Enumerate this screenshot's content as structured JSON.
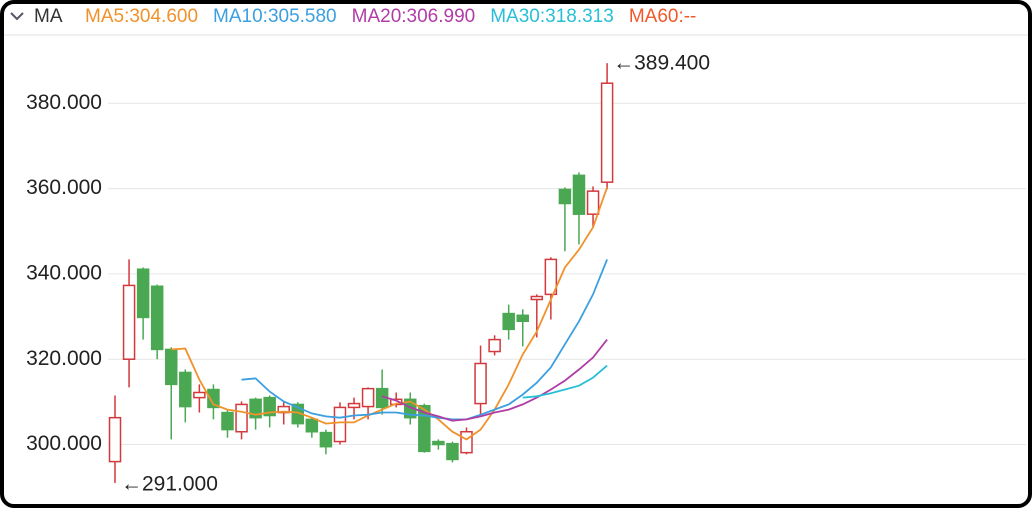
{
  "chart_data": {
    "type": "candlestick",
    "header": "MA",
    "categories": [
      null,
      null,
      null,
      null,
      null,
      null,
      null,
      null,
      null,
      null,
      null,
      null,
      null,
      null,
      null,
      null,
      null,
      null,
      null,
      null,
      null,
      null,
      null,
      null,
      null,
      null,
      null,
      null,
      null,
      null,
      null,
      null,
      null,
      null,
      null,
      null
    ],
    "open": [
      296.0,
      320.0,
      341.1,
      337.1,
      322.3,
      316.9,
      311.0,
      312.9,
      307.5,
      303.0,
      310.6,
      311.0,
      307.5,
      309.4,
      305.9,
      302.8,
      300.7,
      308.7,
      308.9,
      313.1,
      309.4,
      310.6,
      309.1,
      300.7,
      300.2,
      298.1,
      309.6,
      321.8,
      330.7,
      330.3,
      334.0,
      335.2,
      359.8,
      363.1,
      354.0,
      361.5
    ],
    "high": [
      311.5,
      343.4,
      341.5,
      337.5,
      322.8,
      317.6,
      314.1,
      314.1,
      308.2,
      310.1,
      311.0,
      311.5,
      309.9,
      309.9,
      306.3,
      303.5,
      309.9,
      311.0,
      313.4,
      317.6,
      312.2,
      312.2,
      309.6,
      301.2,
      300.7,
      304.0,
      323.2,
      325.6,
      332.8,
      331.7,
      335.2,
      343.9,
      360.3,
      363.8,
      360.5,
      389.4
    ],
    "low": [
      291.0,
      313.4,
      324.6,
      320.0,
      301.2,
      305.2,
      307.5,
      305.9,
      301.6,
      301.2,
      303.5,
      304.0,
      304.7,
      304.0,
      301.6,
      297.7,
      300.0,
      305.9,
      305.9,
      307.0,
      308.7,
      304.7,
      298.1,
      298.8,
      295.8,
      297.7,
      307.0,
      320.9,
      324.6,
      323.0,
      325.1,
      329.3,
      345.3,
      346.9,
      350.9,
      359.8
    ],
    "close": [
      306.3,
      337.3,
      329.8,
      322.3,
      314.1,
      308.9,
      312.2,
      308.7,
      303.5,
      309.4,
      306.3,
      306.8,
      308.9,
      304.9,
      303.0,
      299.5,
      308.7,
      309.6,
      313.1,
      308.7,
      310.6,
      306.3,
      298.4,
      300.0,
      296.5,
      303.0,
      319.0,
      324.6,
      327.0,
      328.9,
      334.7,
      343.4,
      356.5,
      354.0,
      359.4,
      384.7
    ],
    "up_color": "#d2393c",
    "down_color": "#4ba852",
    "series": [
      {
        "name": "MA5:304.600",
        "color": "#f0922b",
        "values": [
          null,
          null,
          null,
          null,
          322.3,
          322.5,
          315.2,
          309.4,
          308.2,
          307.7,
          307.0,
          307.5,
          307.7,
          307.5,
          306.3,
          304.9,
          305.2,
          305.2,
          306.8,
          308.2,
          309.6,
          310.1,
          308.2,
          305.9,
          303.0,
          301.2,
          303.5,
          308.2,
          314.1,
          321.1,
          326.5,
          334.0,
          341.5,
          345.7,
          350.9,
          360.3
        ]
      },
      {
        "name": "MA10:305.580",
        "color": "#3b9fe0",
        "values": [
          null,
          null,
          null,
          null,
          null,
          null,
          null,
          null,
          null,
          315.2,
          315.5,
          312.4,
          310.1,
          308.7,
          307.3,
          306.6,
          306.3,
          306.8,
          307.0,
          307.5,
          307.5,
          307.0,
          306.8,
          306.3,
          305.9,
          305.9,
          307.0,
          308.2,
          309.4,
          311.7,
          314.5,
          318.1,
          323.5,
          328.9,
          335.2,
          343.4
        ]
      },
      {
        "name": "MA20:306.990",
        "color": "#b03ca6",
        "values": [
          null,
          null,
          null,
          null,
          null,
          null,
          null,
          null,
          null,
          null,
          null,
          null,
          null,
          null,
          null,
          null,
          null,
          null,
          null,
          311.3,
          310.3,
          308.7,
          307.5,
          306.6,
          305.6,
          305.9,
          306.6,
          307.5,
          308.2,
          309.4,
          311.0,
          312.9,
          315.0,
          317.6,
          320.4,
          324.6
        ]
      },
      {
        "name": "MA30:318.313",
        "color": "#27bfd6",
        "values": [
          null,
          null,
          null,
          null,
          null,
          null,
          null,
          null,
          null,
          null,
          null,
          null,
          null,
          null,
          null,
          null,
          null,
          null,
          null,
          null,
          null,
          null,
          null,
          null,
          null,
          null,
          null,
          null,
          null,
          311.0,
          311.3,
          312.0,
          312.9,
          313.8,
          315.7,
          318.5
        ]
      },
      {
        "name": "MA60:--",
        "color": "#f0592a",
        "values": [
          null,
          null,
          null,
          null,
          null,
          null,
          null,
          null,
          null,
          null,
          null,
          null,
          null,
          null,
          null,
          null,
          null,
          null,
          null,
          null,
          null,
          null,
          null,
          null,
          null,
          null,
          null,
          null,
          null,
          null,
          null,
          null,
          null,
          null,
          null,
          null
        ]
      }
    ],
    "annotations": {
      "max": "←389.400",
      "min": "←291.000"
    },
    "ylim": [
      287,
      396
    ],
    "yticks": [
      {
        "value": 300,
        "label": "300.000"
      },
      {
        "value": 320,
        "label": "320.000"
      },
      {
        "value": 340,
        "label": "340.000"
      },
      {
        "value": 360,
        "label": "360.000"
      },
      {
        "value": 380,
        "label": "380.000"
      }
    ],
    "grid": true
  }
}
